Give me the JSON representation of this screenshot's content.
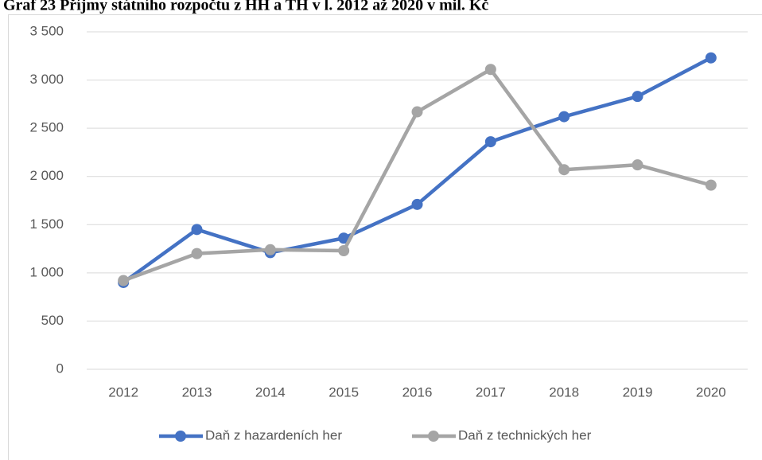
{
  "chart_data": {
    "type": "line",
    "title": "Graf 23 Příjmy státního rozpočtu z HH a TH v l. 2012 až 2020 v mil. Kč",
    "categories": [
      "2012",
      "2013",
      "2014",
      "2015",
      "2016",
      "2017",
      "2018",
      "2019",
      "2020"
    ],
    "series": [
      {
        "name": "Daň z hazardeních her",
        "color": "#4472c4",
        "values": [
          900,
          1450,
          1210,
          1360,
          1710,
          2360,
          2620,
          2830,
          3230
        ]
      },
      {
        "name": "Daň z technických her",
        "color": "#a5a5a5",
        "values": [
          920,
          1200,
          1240,
          1230,
          2670,
          3110,
          2070,
          2120,
          1910
        ]
      }
    ],
    "ylim": [
      0,
      3500
    ],
    "yticks": [
      0,
      500,
      {
        "value": 1000,
        "label": "1 000"
      },
      {
        "value": 1500,
        "label": "1 500"
      },
      {
        "value": 2000,
        "label": "2 000"
      },
      {
        "value": 2500,
        "label": "2 500"
      },
      {
        "value": 3000,
        "label": "3 000"
      },
      {
        "value": 3500,
        "label": "3 500"
      }
    ],
    "grid": true,
    "legend": "bottom"
  }
}
